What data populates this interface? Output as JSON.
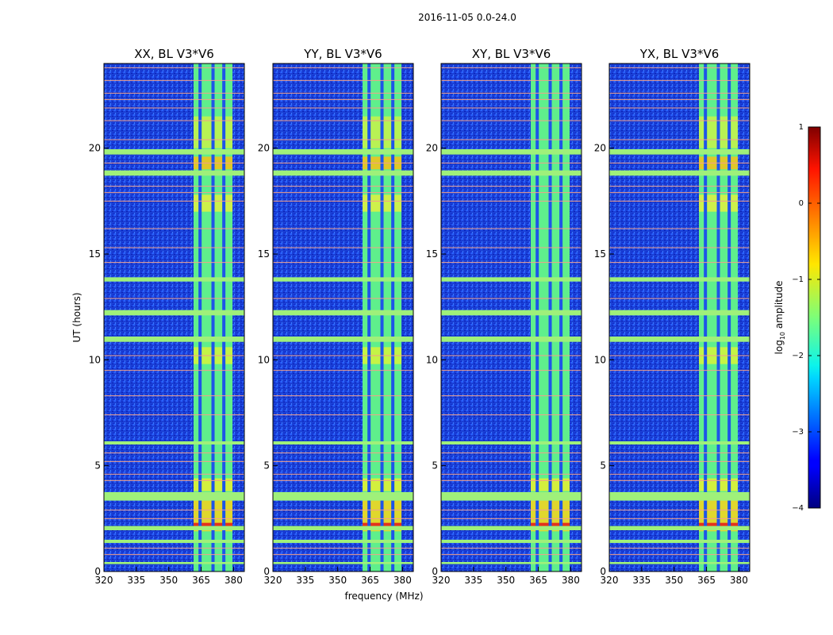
{
  "chart_data": {
    "type": "heatmap",
    "suptitle": "2016-11-05 0.0-24.0",
    "xlabel": "frequency (MHz)",
    "ylabel": "UT (hours)",
    "xlim": [
      320,
      385
    ],
    "ylim": [
      0,
      24
    ],
    "xticks": [
      320,
      335,
      350,
      365,
      380
    ],
    "yticks": [
      0,
      5,
      10,
      15,
      20
    ],
    "panels": [
      {
        "title": "XX, BL V3*V6",
        "pol": "XX"
      },
      {
        "title": "YY, BL V3*V6",
        "pol": "YY"
      },
      {
        "title": "XY, BL V3*V6",
        "pol": "XY"
      },
      {
        "title": "YX, BL V3*V6",
        "pol": "YX"
      }
    ],
    "signal_band_mhz": [
      361.5,
      379.5
    ],
    "channel_gaps_mhz": [
      364.5,
      370.5,
      375.5
    ],
    "bright_band_ut_hours": [
      [
        0.35,
        0.45
      ],
      [
        1.35,
        1.5
      ],
      [
        1.95,
        2.15
      ],
      [
        3.35,
        3.75
      ],
      [
        6.0,
        6.15
      ],
      [
        10.85,
        11.1
      ],
      [
        12.1,
        12.35
      ],
      [
        13.7,
        13.9
      ],
      [
        18.7,
        18.95
      ],
      [
        19.7,
        19.95
      ]
    ],
    "thin_rfi_ut_hours": [
      0.8,
      1.1,
      2.5,
      2.9,
      4.3,
      4.6,
      5.2,
      5.6,
      7.4,
      8.3,
      9.5,
      10.2,
      12.9,
      14.6,
      15.3,
      16.2,
      17.5,
      17.9,
      18.2,
      19.3,
      20.4,
      21.3,
      21.9,
      22.3,
      22.6,
      23.2,
      23.8
    ],
    "colorbar": {
      "label": "log10 amplitude",
      "range": [
        -4,
        1
      ],
      "ticks": [
        -4,
        -3,
        -2,
        -1,
        0,
        1
      ],
      "tick_labels": [
        "−4",
        "−3",
        "−2",
        "−1",
        "0",
        "1"
      ],
      "colormap": "jet"
    }
  }
}
